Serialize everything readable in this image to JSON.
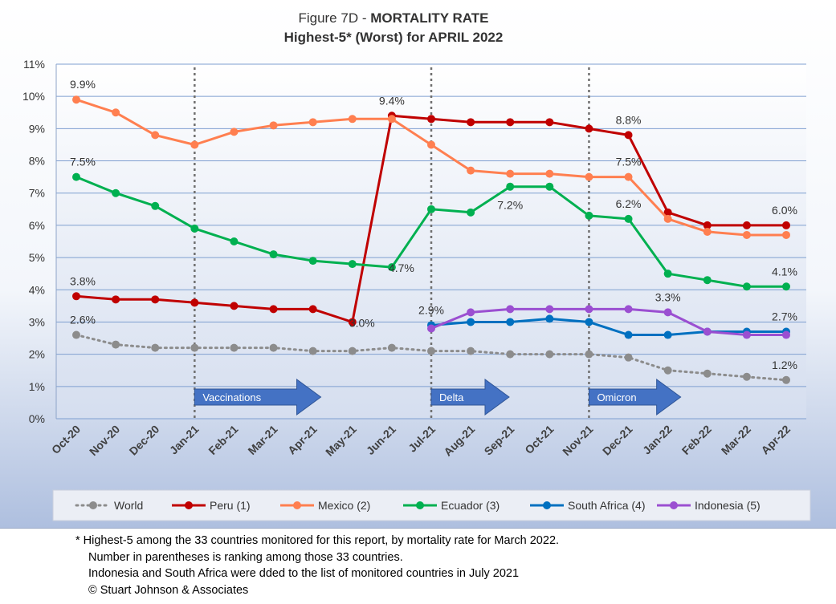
{
  "chart_data": {
    "type": "line",
    "title_prefix": "Figure 7D  - ",
    "title_bold": "MORTALITY RATE",
    "subtitle": "Highest-5* (Worst) for APRIL 2022",
    "x": [
      "Oct-20",
      "Nov-20",
      "Dec-20",
      "Jan-21",
      "Feb-21",
      "Mar-21",
      "Apr-21",
      "May-21",
      "Jun-21",
      "Jul-21",
      "Aug-21",
      "Sep-21",
      "Oct-21",
      "Nov-21",
      "Dec-21",
      "Jan-22",
      "Feb-22",
      "Mar-22",
      "Apr-22"
    ],
    "ylim": [
      0,
      11
    ],
    "yticks": [
      "0%",
      "1%",
      "2%",
      "3%",
      "4%",
      "5%",
      "6%",
      "7%",
      "8%",
      "9%",
      "10%",
      "11%"
    ],
    "grid": true,
    "legend_position": "bottom",
    "series": [
      {
        "name": "World",
        "color": "#8c8c8c",
        "style": "dotted",
        "values": [
          2.6,
          2.3,
          2.2,
          2.2,
          2.2,
          2.2,
          2.1,
          2.1,
          2.2,
          2.1,
          2.1,
          2.0,
          2.0,
          2.0,
          1.9,
          1.5,
          1.4,
          1.3,
          1.2
        ]
      },
      {
        "name": "Peru (1)",
        "color": "#c00000",
        "style": "solid",
        "values": [
          3.8,
          3.7,
          3.7,
          3.6,
          3.5,
          3.4,
          3.4,
          3.0,
          9.4,
          9.3,
          9.2,
          9.2,
          9.2,
          9.0,
          8.8,
          6.4,
          6.0,
          6.0,
          6.0
        ]
      },
      {
        "name": "Mexico (2)",
        "color": "#ff7f50",
        "style": "solid",
        "values": [
          9.9,
          9.5,
          8.8,
          8.5,
          8.9,
          9.1,
          9.2,
          9.3,
          9.3,
          8.5,
          7.7,
          7.6,
          7.6,
          7.5,
          7.5,
          6.2,
          5.8,
          5.7,
          5.7
        ]
      },
      {
        "name": "Ecuador (3)",
        "color": "#00b050",
        "style": "solid",
        "values": [
          7.5,
          7.0,
          6.6,
          5.9,
          5.5,
          5.1,
          4.9,
          4.8,
          4.7,
          6.5,
          6.4,
          7.2,
          7.2,
          6.3,
          6.2,
          4.5,
          4.3,
          4.1,
          4.1
        ]
      },
      {
        "name": "South Africa (4)",
        "color": "#0070c0",
        "style": "solid",
        "values": [
          null,
          null,
          null,
          null,
          null,
          null,
          null,
          null,
          null,
          2.9,
          3.0,
          3.0,
          3.1,
          3.0,
          2.6,
          2.6,
          2.7,
          2.7,
          2.7
        ]
      },
      {
        "name": "Indonesia (5)",
        "color": "#9b4fd1",
        "style": "solid",
        "values": [
          null,
          null,
          null,
          null,
          null,
          null,
          null,
          null,
          null,
          2.8,
          3.3,
          3.4,
          3.4,
          3.4,
          3.4,
          3.3,
          2.7,
          2.6,
          2.6
        ]
      }
    ],
    "data_labels": [
      {
        "text": "9.9%",
        "x": "Oct-20",
        "y": 9.9,
        "pos": "above"
      },
      {
        "text": "7.5%",
        "x": "Oct-20",
        "y": 7.5,
        "pos": "above"
      },
      {
        "text": "3.8%",
        "x": "Oct-20",
        "y": 3.8,
        "pos": "above"
      },
      {
        "text": "2.6%",
        "x": "Oct-20",
        "y": 2.6,
        "pos": "above"
      },
      {
        "text": "3.0%",
        "x": "May-21",
        "y": 3.0,
        "pos": "right"
      },
      {
        "text": "9.4%",
        "x": "Jun-21",
        "y": 9.4,
        "pos": "above"
      },
      {
        "text": "4.7%",
        "x": "Jun-21",
        "y": 4.7,
        "pos": "right"
      },
      {
        "text": "2.9%",
        "x": "Jul-21",
        "y": 2.9,
        "pos": "above"
      },
      {
        "text": "7.2%",
        "x": "Sep-21",
        "y": 7.2,
        "pos": "below"
      },
      {
        "text": "8.8%",
        "x": "Dec-21",
        "y": 8.8,
        "pos": "above"
      },
      {
        "text": "7.5%",
        "x": "Dec-21",
        "y": 7.5,
        "pos": "above"
      },
      {
        "text": "6.2%",
        "x": "Dec-21",
        "y": 6.2,
        "pos": "above"
      },
      {
        "text": "3.3%",
        "x": "Jan-22",
        "y": 3.3,
        "pos": "above"
      },
      {
        "text": "6.0%",
        "x": "Apr-22",
        "y": 6.0,
        "pos": "above"
      },
      {
        "text": "4.1%",
        "x": "Apr-22",
        "y": 4.1,
        "pos": "above"
      },
      {
        "text": "2.7%",
        "x": "Apr-22",
        "y": 2.7,
        "pos": "above"
      },
      {
        "text": "1.2%",
        "x": "Apr-22",
        "y": 1.2,
        "pos": "above"
      }
    ],
    "annotations": [
      {
        "text": "Vaccinations",
        "at": "Jan-21"
      },
      {
        "text": "Delta",
        "at": "Jul-21"
      },
      {
        "text": "Omicron",
        "at": "Nov-21"
      }
    ]
  },
  "footnote": {
    "line1": "* Highest-5 among the 33 countries monitored for this report, by mortality rate for March 2022.",
    "line2": "Number in parentheses is ranking among those 33 countries.",
    "line3": "Indonesia and South Africa were dded to the list of monitored countries in July 2021",
    "line4": "© Stuart Johnson & Associates"
  }
}
